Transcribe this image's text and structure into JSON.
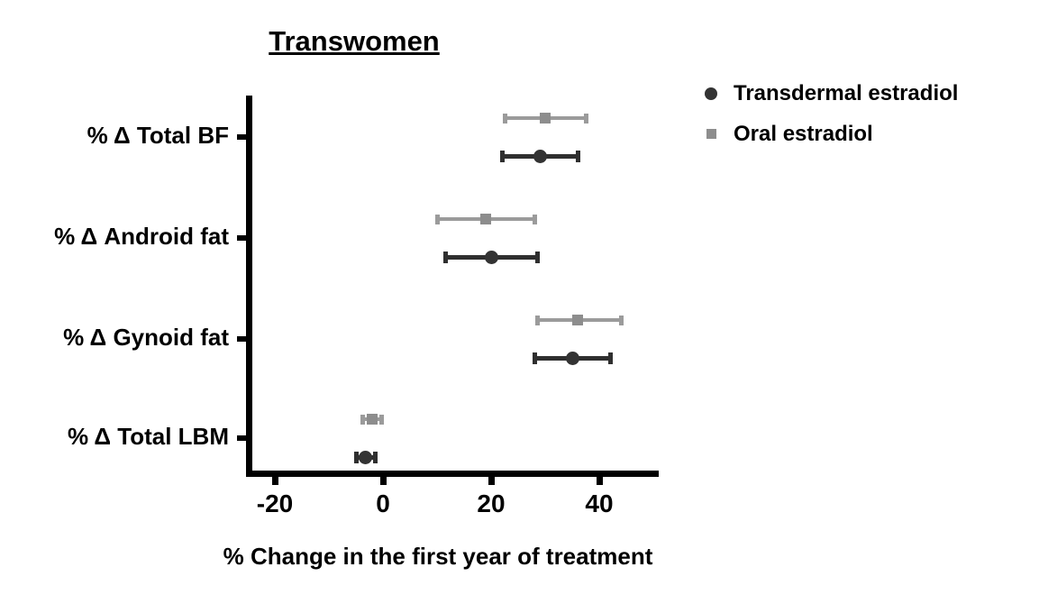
{
  "figure": {
    "title": "Transwomen",
    "xlabel": "% Change in the first year of treatment"
  },
  "colors": {
    "transdermal_line": "#2f2f2f",
    "transdermal_marker": "#333333",
    "oral_line": "#9b9b9b",
    "oral_marker": "#8d8d8d",
    "axis": "#000000",
    "text": "#000000"
  },
  "legend": {
    "items": [
      {
        "label": "Transdermal estradiol",
        "marker": "circle",
        "color": "#333333"
      },
      {
        "label": "Oral estradiol",
        "marker": "square",
        "color": "#8d8d8d"
      }
    ]
  },
  "chart_data": {
    "type": "scatter",
    "subtype": "horizontal-point-estimates-with-error-bars",
    "title": "Transwomen",
    "xlabel": "% Change in the first year of treatment",
    "xlim": [
      -25.3,
      51
    ],
    "xticks": [
      -20,
      0,
      20,
      40
    ],
    "grid": false,
    "legend_position": "top-right",
    "categories": [
      "% Δ Total BF",
      "% Δ Android fat",
      "% Δ Gynoid fat",
      "% Δ Total LBM"
    ],
    "series": [
      {
        "name": "Oral estradiol",
        "marker": "square",
        "line_color": "#9b9b9b",
        "marker_color": "#8d8d8d",
        "values": [
          30,
          19,
          36,
          -2
        ],
        "ci_low": [
          22.5,
          10,
          28.5,
          -3.7
        ],
        "ci_high": [
          37.5,
          28,
          44,
          -0.3
        ]
      },
      {
        "name": "Transdermal estradiol",
        "marker": "circle",
        "line_color": "#2f2f2f",
        "marker_color": "#333333",
        "values": [
          29,
          20,
          35,
          -3.3
        ],
        "ci_low": [
          22,
          11.5,
          28,
          -5
        ],
        "ci_high": [
          36,
          28.5,
          42,
          -1.5
        ]
      }
    ]
  }
}
